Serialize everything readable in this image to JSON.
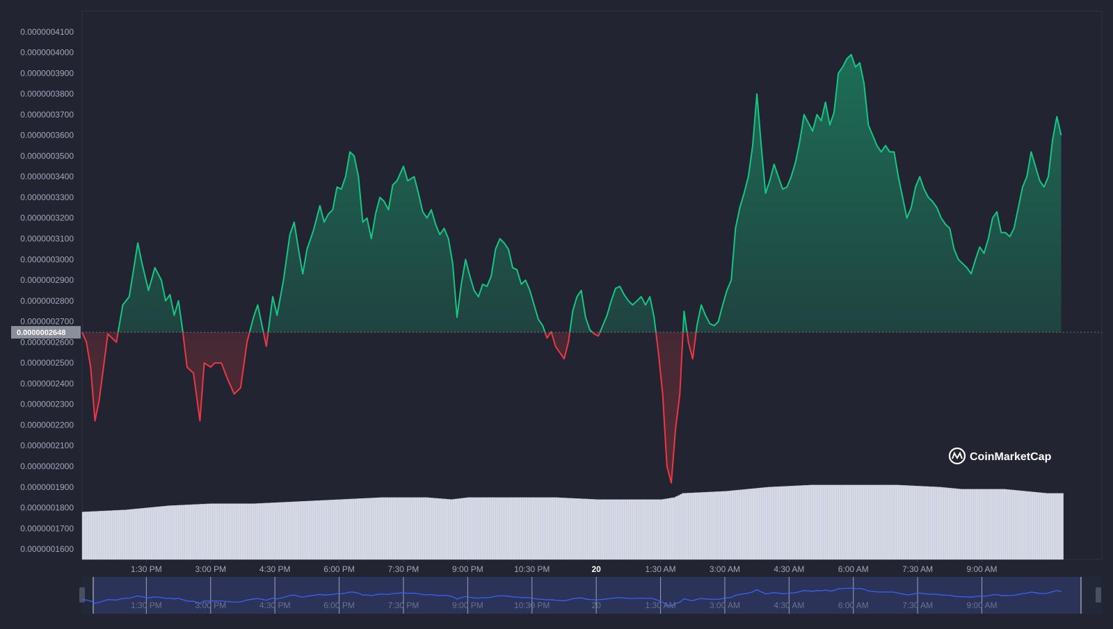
{
  "brand": {
    "name": "CoinMarketCap",
    "icon": "coinmarketcap-logo-icon"
  },
  "colors": {
    "background": "#222531",
    "up": "#16c784",
    "down": "#ea3943",
    "volume": "#d6d9e6",
    "navigator_line": "#3861fb",
    "navigator_bg": "#2b3358"
  },
  "chart_data": {
    "type": "line",
    "title": "",
    "xlabel": "",
    "ylabel": "",
    "ylim": [
      1.55e-07,
      4.2e-07
    ],
    "baseline": 2.648e-07,
    "current_price_label": "0.0000002648",
    "y_ticks": [
      "0.0000001600",
      "0.0000001700",
      "0.0000001800",
      "0.0000001900",
      "0.0000002000",
      "0.0000002100",
      "0.0000002200",
      "0.0000002300",
      "0.0000002400",
      "0.0000002500",
      "0.0000002600",
      "0.0000002700",
      "0.0000002800",
      "0.0000002900",
      "0.0000003000",
      "0.0000003100",
      "0.0000003200",
      "0.0000003300",
      "0.0000003400",
      "0.0000003500",
      "0.0000003600",
      "0.0000003700",
      "0.0000003800",
      "0.0000003900",
      "0.0000004000",
      "0.0000004100"
    ],
    "x_ticks": [
      "1:30 PM",
      "3:00 PM",
      "4:30 PM",
      "6:00 PM",
      "7:30 PM",
      "9:00 PM",
      "10:30 PM",
      "20",
      "1:30 AM",
      "3:00 AM",
      "4:30 AM",
      "6:00 AM",
      "7:30 AM",
      "9:00 AM"
    ],
    "x_start_hours": 12.0,
    "x_end_hours": 35.8,
    "x_tick_hours": [
      13.5,
      15.0,
      16.5,
      18.0,
      19.5,
      21.0,
      22.5,
      24.0,
      25.5,
      27.0,
      28.5,
      30.0,
      31.5,
      33.0
    ],
    "price_points": [
      [
        12.0,
        2.648
      ],
      [
        12.1,
        2.6
      ],
      [
        12.2,
        2.48
      ],
      [
        12.3,
        2.22
      ],
      [
        12.4,
        2.32
      ],
      [
        12.6,
        2.64
      ],
      [
        12.8,
        2.6
      ],
      [
        12.95,
        2.78
      ],
      [
        13.1,
        2.82
      ],
      [
        13.3,
        3.08
      ],
      [
        13.4,
        2.98
      ],
      [
        13.55,
        2.85
      ],
      [
        13.7,
        2.96
      ],
      [
        13.85,
        2.9
      ],
      [
        13.95,
        2.8
      ],
      [
        14.05,
        2.83
      ],
      [
        14.15,
        2.73
      ],
      [
        14.25,
        2.8
      ],
      [
        14.35,
        2.65
      ],
      [
        14.45,
        2.48
      ],
      [
        14.6,
        2.45
      ],
      [
        14.75,
        2.22
      ],
      [
        14.85,
        2.5
      ],
      [
        15.0,
        2.48
      ],
      [
        15.1,
        2.5
      ],
      [
        15.25,
        2.5
      ],
      [
        15.4,
        2.42
      ],
      [
        15.55,
        2.35
      ],
      [
        15.7,
        2.38
      ],
      [
        15.85,
        2.6
      ],
      [
        16.0,
        2.72
      ],
      [
        16.1,
        2.78
      ],
      [
        16.2,
        2.68
      ],
      [
        16.3,
        2.58
      ],
      [
        16.45,
        2.82
      ],
      [
        16.55,
        2.73
      ],
      [
        16.7,
        2.9
      ],
      [
        16.85,
        3.12
      ],
      [
        16.95,
        3.18
      ],
      [
        17.05,
        3.05
      ],
      [
        17.15,
        2.93
      ],
      [
        17.25,
        3.05
      ],
      [
        17.4,
        3.14
      ],
      [
        17.55,
        3.26
      ],
      [
        17.65,
        3.18
      ],
      [
        17.75,
        3.22
      ],
      [
        17.85,
        3.24
      ],
      [
        17.95,
        3.35
      ],
      [
        18.05,
        3.34
      ],
      [
        18.15,
        3.4
      ],
      [
        18.25,
        3.52
      ],
      [
        18.35,
        3.5
      ],
      [
        18.45,
        3.4
      ],
      [
        18.55,
        3.18
      ],
      [
        18.65,
        3.2
      ],
      [
        18.75,
        3.1
      ],
      [
        18.85,
        3.22
      ],
      [
        18.95,
        3.3
      ],
      [
        19.05,
        3.28
      ],
      [
        19.15,
        3.24
      ],
      [
        19.25,
        3.36
      ],
      [
        19.35,
        3.38
      ],
      [
        19.5,
        3.45
      ],
      [
        19.6,
        3.38
      ],
      [
        19.75,
        3.4
      ],
      [
        19.85,
        3.32
      ],
      [
        19.95,
        3.23
      ],
      [
        20.05,
        3.2
      ],
      [
        20.15,
        3.24
      ],
      [
        20.25,
        3.17
      ],
      [
        20.35,
        3.12
      ],
      [
        20.45,
        3.15
      ],
      [
        20.55,
        3.1
      ],
      [
        20.65,
        2.98
      ],
      [
        20.75,
        2.72
      ],
      [
        20.85,
        2.88
      ],
      [
        20.95,
        3.0
      ],
      [
        21.05,
        2.92
      ],
      [
        21.15,
        2.85
      ],
      [
        21.25,
        2.82
      ],
      [
        21.35,
        2.88
      ],
      [
        21.45,
        2.87
      ],
      [
        21.55,
        2.92
      ],
      [
        21.65,
        3.05
      ],
      [
        21.75,
        3.1
      ],
      [
        21.85,
        3.08
      ],
      [
        21.95,
        3.05
      ],
      [
        22.05,
        2.96
      ],
      [
        22.15,
        2.95
      ],
      [
        22.25,
        2.88
      ],
      [
        22.35,
        2.9
      ],
      [
        22.45,
        2.85
      ],
      [
        22.55,
        2.78
      ],
      [
        22.65,
        2.71
      ],
      [
        22.75,
        2.68
      ],
      [
        22.85,
        2.62
      ],
      [
        22.95,
        2.65
      ],
      [
        23.05,
        2.58
      ],
      [
        23.15,
        2.55
      ],
      [
        23.25,
        2.52
      ],
      [
        23.35,
        2.6
      ],
      [
        23.45,
        2.75
      ],
      [
        23.55,
        2.82
      ],
      [
        23.65,
        2.85
      ],
      [
        23.75,
        2.72
      ],
      [
        23.85,
        2.66
      ],
      [
        23.95,
        2.64
      ],
      [
        24.05,
        2.63
      ],
      [
        24.15,
        2.68
      ],
      [
        24.25,
        2.73
      ],
      [
        24.35,
        2.8
      ],
      [
        24.45,
        2.86
      ],
      [
        24.55,
        2.87
      ],
      [
        24.65,
        2.83
      ],
      [
        24.75,
        2.8
      ],
      [
        24.85,
        2.78
      ],
      [
        24.95,
        2.8
      ],
      [
        25.05,
        2.82
      ],
      [
        25.15,
        2.78
      ],
      [
        25.25,
        2.82
      ],
      [
        25.35,
        2.72
      ],
      [
        25.45,
        2.55
      ],
      [
        25.55,
        2.35
      ],
      [
        25.65,
        2.0
      ],
      [
        25.75,
        1.92
      ],
      [
        25.85,
        2.18
      ],
      [
        25.95,
        2.35
      ],
      [
        26.05,
        2.75
      ],
      [
        26.15,
        2.6
      ],
      [
        26.25,
        2.52
      ],
      [
        26.35,
        2.68
      ],
      [
        26.45,
        2.78
      ],
      [
        26.55,
        2.73
      ],
      [
        26.65,
        2.69
      ],
      [
        26.75,
        2.68
      ],
      [
        26.85,
        2.7
      ],
      [
        26.95,
        2.78
      ],
      [
        27.05,
        2.85
      ],
      [
        27.15,
        2.9
      ],
      [
        27.25,
        3.15
      ],
      [
        27.35,
        3.25
      ],
      [
        27.45,
        3.32
      ],
      [
        27.55,
        3.4
      ],
      [
        27.65,
        3.55
      ],
      [
        27.75,
        3.8
      ],
      [
        27.85,
        3.55
      ],
      [
        27.95,
        3.32
      ],
      [
        28.05,
        3.38
      ],
      [
        28.15,
        3.46
      ],
      [
        28.25,
        3.4
      ],
      [
        28.35,
        3.34
      ],
      [
        28.45,
        3.35
      ],
      [
        28.55,
        3.4
      ],
      [
        28.65,
        3.47
      ],
      [
        28.75,
        3.57
      ],
      [
        28.85,
        3.7
      ],
      [
        28.95,
        3.66
      ],
      [
        29.05,
        3.62
      ],
      [
        29.15,
        3.7
      ],
      [
        29.25,
        3.67
      ],
      [
        29.35,
        3.76
      ],
      [
        29.45,
        3.65
      ],
      [
        29.55,
        3.71
      ],
      [
        29.65,
        3.9
      ],
      [
        29.75,
        3.93
      ],
      [
        29.85,
        3.97
      ],
      [
        29.95,
        3.99
      ],
      [
        30.05,
        3.93
      ],
      [
        30.15,
        3.95
      ],
      [
        30.25,
        3.85
      ],
      [
        30.35,
        3.65
      ],
      [
        30.45,
        3.6
      ],
      [
        30.55,
        3.55
      ],
      [
        30.65,
        3.52
      ],
      [
        30.75,
        3.55
      ],
      [
        30.85,
        3.52
      ],
      [
        30.95,
        3.52
      ],
      [
        31.05,
        3.4
      ],
      [
        31.15,
        3.3
      ],
      [
        31.25,
        3.2
      ],
      [
        31.35,
        3.25
      ],
      [
        31.45,
        3.35
      ],
      [
        31.55,
        3.4
      ],
      [
        31.65,
        3.34
      ],
      [
        31.75,
        3.3
      ],
      [
        31.85,
        3.28
      ],
      [
        31.95,
        3.25
      ],
      [
        32.05,
        3.2
      ],
      [
        32.15,
        3.17
      ],
      [
        32.25,
        3.15
      ],
      [
        32.35,
        3.05
      ],
      [
        32.45,
        3.0
      ],
      [
        32.55,
        2.98
      ],
      [
        32.65,
        2.96
      ],
      [
        32.75,
        2.93
      ],
      [
        32.85,
        3.0
      ],
      [
        32.95,
        3.06
      ],
      [
        33.05,
        3.03
      ],
      [
        33.15,
        3.1
      ],
      [
        33.25,
        3.2
      ],
      [
        33.35,
        3.23
      ],
      [
        33.45,
        3.13
      ],
      [
        33.55,
        3.13
      ],
      [
        33.65,
        3.11
      ],
      [
        33.75,
        3.15
      ],
      [
        33.85,
        3.25
      ],
      [
        33.95,
        3.35
      ],
      [
        34.05,
        3.4
      ],
      [
        34.15,
        3.52
      ],
      [
        34.25,
        3.45
      ],
      [
        34.35,
        3.38
      ],
      [
        34.45,
        3.35
      ],
      [
        34.55,
        3.4
      ],
      [
        34.65,
        3.58
      ],
      [
        34.75,
        3.69
      ],
      [
        34.85,
        3.6
      ]
    ],
    "volume_points": [
      [
        12.0,
        1.78
      ],
      [
        13.0,
        1.79
      ],
      [
        14.0,
        1.81
      ],
      [
        15.0,
        1.82
      ],
      [
        16.0,
        1.82
      ],
      [
        17.0,
        1.83
      ],
      [
        18.0,
        1.84
      ],
      [
        19.0,
        1.85
      ],
      [
        20.0,
        1.85
      ],
      [
        20.6,
        1.84
      ],
      [
        21.0,
        1.85
      ],
      [
        22.0,
        1.85
      ],
      [
        23.0,
        1.85
      ],
      [
        24.0,
        1.84
      ],
      [
        25.0,
        1.84
      ],
      [
        25.5,
        1.84
      ],
      [
        25.8,
        1.85
      ],
      [
        26.0,
        1.87
      ],
      [
        27.0,
        1.88
      ],
      [
        27.5,
        1.89
      ],
      [
        28.0,
        1.9
      ],
      [
        29.0,
        1.91
      ],
      [
        30.0,
        1.91
      ],
      [
        31.0,
        1.91
      ],
      [
        32.0,
        1.9
      ],
      [
        32.5,
        1.89
      ],
      [
        33.0,
        1.89
      ],
      [
        33.5,
        1.89
      ],
      [
        34.0,
        1.88
      ],
      [
        34.5,
        1.87
      ],
      [
        34.85,
        1.87
      ]
    ]
  }
}
